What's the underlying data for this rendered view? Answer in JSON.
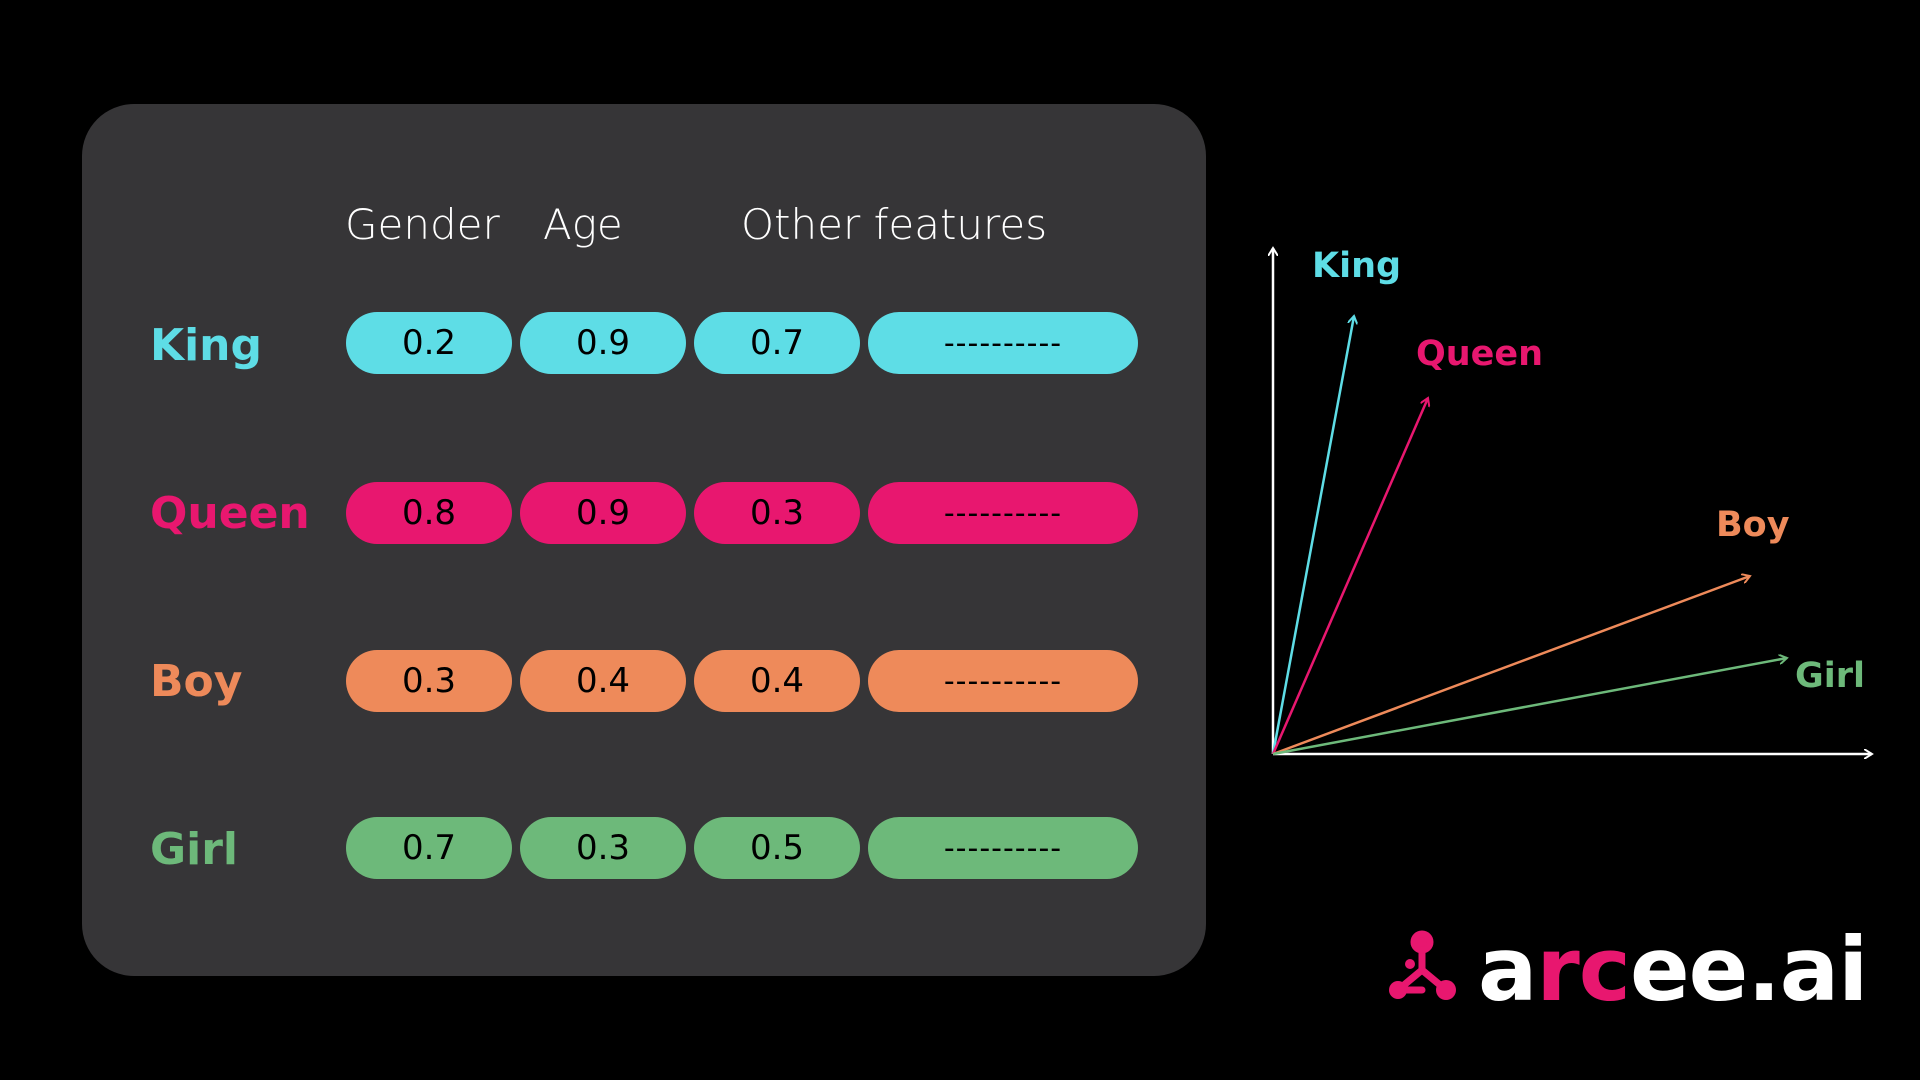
{
  "table": {
    "headers": [
      "Gender",
      "Age",
      "Other features"
    ],
    "rows": [
      {
        "label": "King",
        "color": "#5EDDE6",
        "values": [
          "0.2",
          "0.9",
          "0.7",
          "----------"
        ]
      },
      {
        "label": "Queen",
        "color": "#E8176F",
        "values": [
          "0.8",
          "0.9",
          "0.3",
          "----------"
        ]
      },
      {
        "label": "Boy",
        "color": "#EE8A5A",
        "values": [
          "0.3",
          "0.4",
          "0.4",
          "----------"
        ]
      },
      {
        "label": "Girl",
        "color": "#6DB97A",
        "values": [
          "0.7",
          "0.3",
          "0.5",
          "----------"
        ]
      }
    ]
  },
  "vectors": [
    {
      "label": "King",
      "color": "#5EDDE6"
    },
    {
      "label": "Queen",
      "color": "#E8176F"
    },
    {
      "label": "Boy",
      "color": "#EE8A5A"
    },
    {
      "label": "Girl",
      "color": "#6DB97A"
    }
  ],
  "logo": {
    "text_a": "a",
    "text_rc": "rc",
    "text_rest": "ee.ai",
    "brand_color": "#E8176F"
  }
}
